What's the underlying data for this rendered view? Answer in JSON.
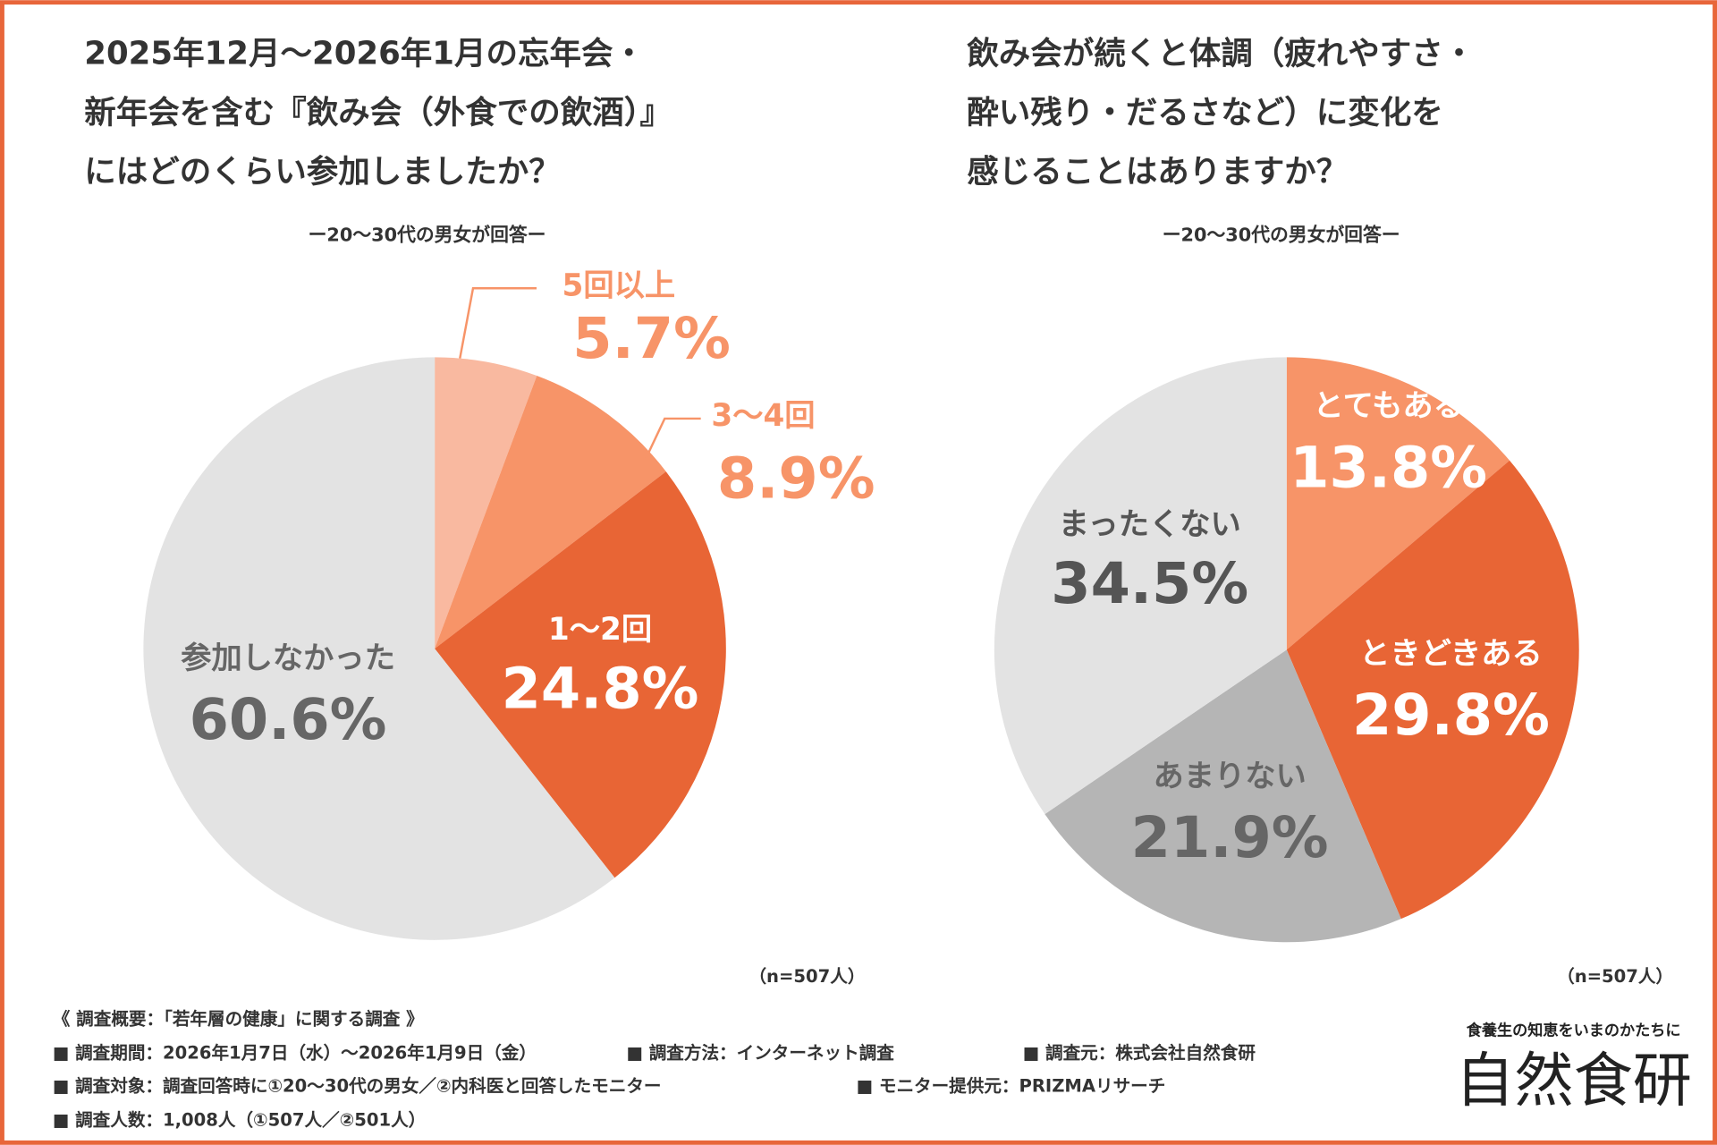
{
  "chart_data": [
    {
      "type": "pie",
      "title": [
        "2025年12月～2026年1月の忘年会・",
        "新年会を含む『飲み会（外食での飲酒）』",
        "にはどのくらい参加しましたか？"
      ],
      "subtitle": "ー20～30代の男女が回答ー",
      "categories": [
        "5回以上",
        "3～4回",
        "1～2回",
        "参加しなかった"
      ],
      "values": [
        5.7,
        8.9,
        24.8,
        60.6
      ],
      "value_labels": [
        "5.7%",
        "8.9%",
        "24.8%",
        "60.6%"
      ],
      "colors": [
        "#f9b9a0",
        "#f79468",
        "#e86535",
        "#e3e3e3"
      ],
      "note": "（n=507人）"
    },
    {
      "type": "pie",
      "title": [
        "飲み会が続くと体調（疲れやすさ・",
        "酔い残り・だるさなど）に変化を",
        "感じることはありますか？"
      ],
      "subtitle": "ー20～30代の男女が回答ー",
      "categories": [
        "とてもある",
        "ときどきある",
        "あまりない",
        "まったくない"
      ],
      "values": [
        13.8,
        29.8,
        21.9,
        34.5
      ],
      "value_labels": [
        "13.8%",
        "29.8%",
        "21.9%",
        "34.5%"
      ],
      "colors": [
        "#f79468",
        "#e86535",
        "#b5b5b5",
        "#e3e3e3"
      ],
      "note": "（n=507人）"
    }
  ],
  "survey": {
    "heading": "《 調査概要：「若年層の健康」に関する調査 》",
    "rows": [
      [
        "■ 調査期間：2026年1月7日（水）～2026年1月9日（金）",
        "■ 調査方法：インターネット調査",
        "■ 調査元：株式会社自然食研"
      ],
      [
        "■ 調査対象：調査回答時に①20～30代の男女／②内科医と回答したモニター",
        "■ モニター提供元：PRIZMAリサーチ"
      ],
      [
        "■ 調査人数：1,008人（①507人／②501人）"
      ]
    ]
  },
  "brand": {
    "tagline": "食養生の知恵をいまのかたちに",
    "name": "自然食研"
  }
}
